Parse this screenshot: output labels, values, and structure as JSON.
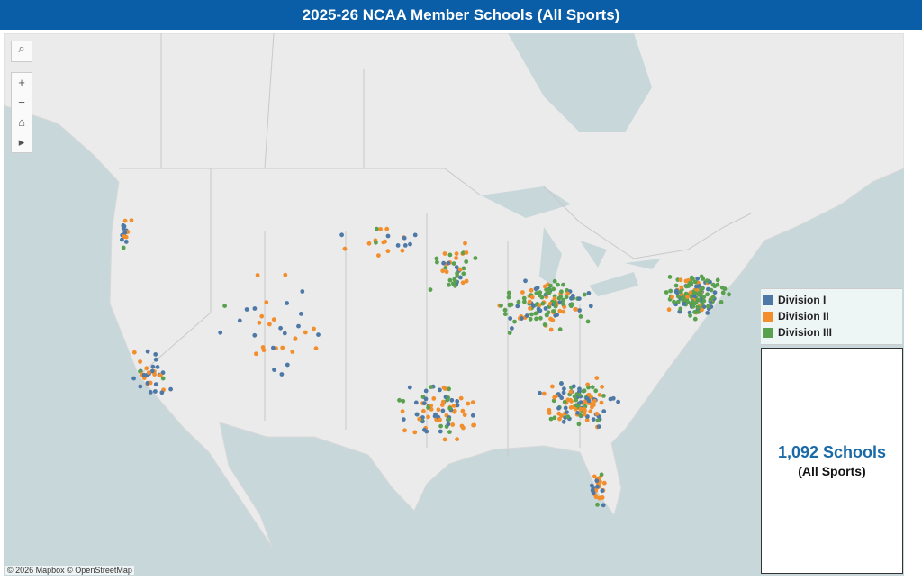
{
  "header": {
    "title": "2025-26 NCAA Member Schools (All Sports)"
  },
  "legend": [
    {
      "label": "Division I",
      "color": "#4e79a7"
    },
    {
      "label": "Division II",
      "color": "#f28e2b"
    },
    {
      "label": "Division III",
      "color": "#59a14f"
    }
  ],
  "summary": {
    "count": "1,092 Schools",
    "subtitle": "(All Sports)"
  },
  "attribution": "© 2026 Mapbox © OpenStreetMap"
}
